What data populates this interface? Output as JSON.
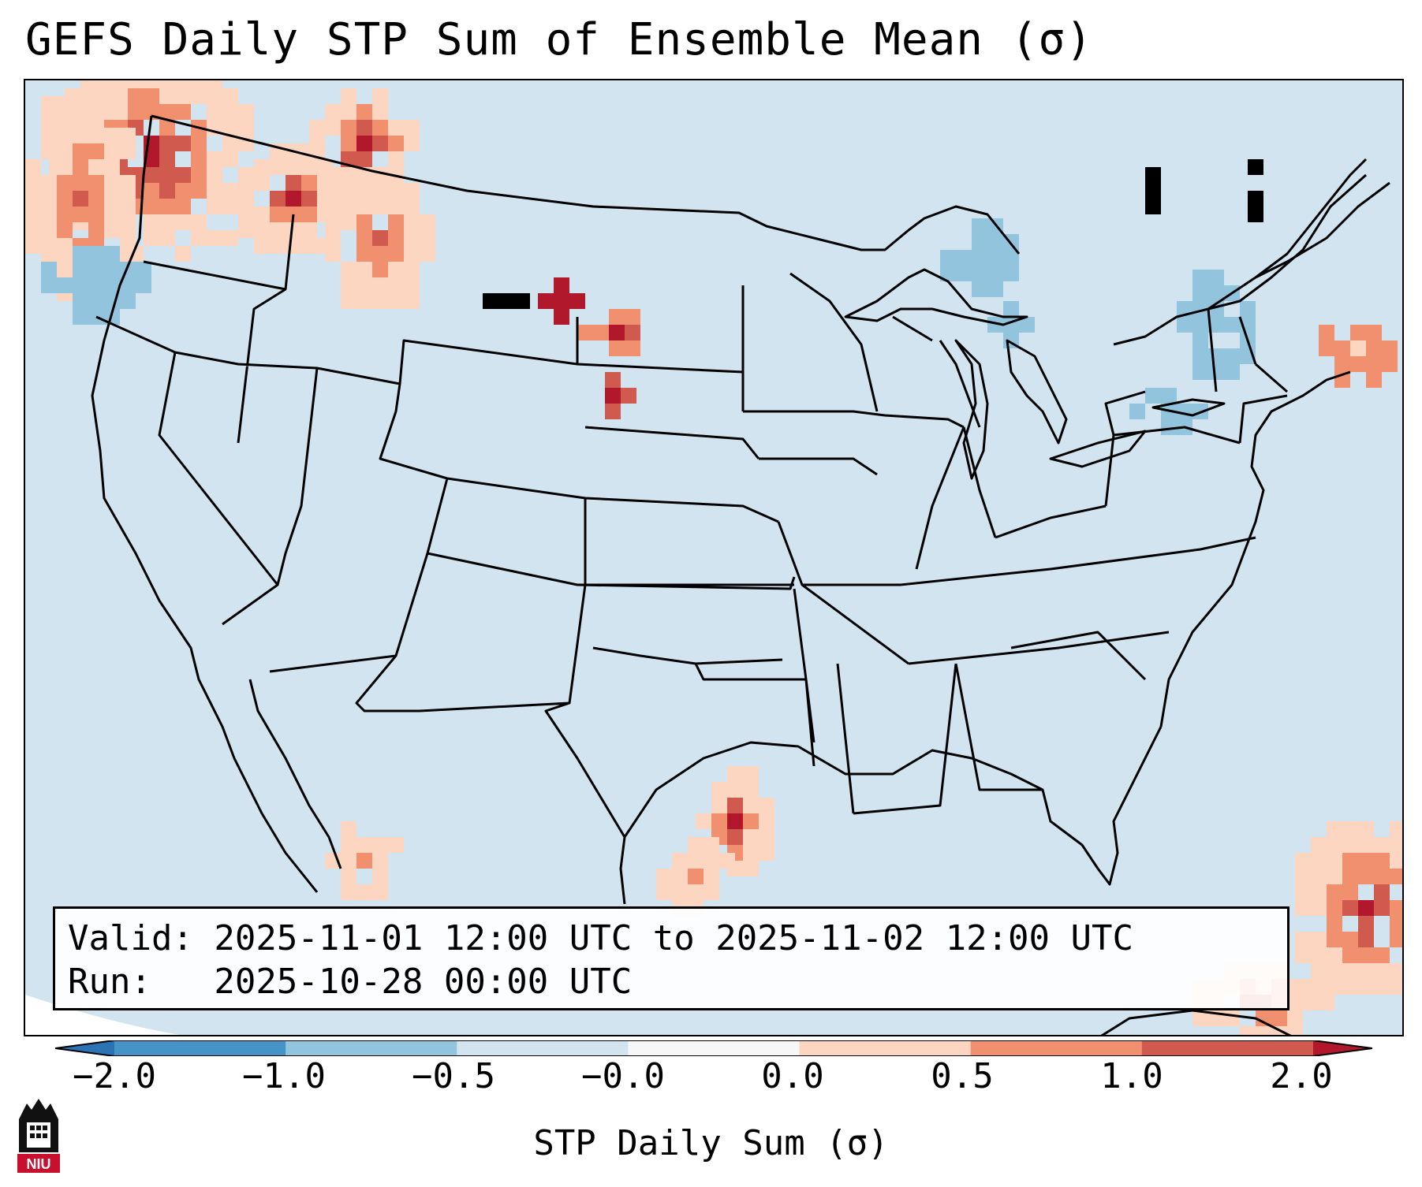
{
  "title": "GEFS Daily STP Sum of Ensemble Mean (σ)",
  "info": {
    "valid_line": "Valid: 2025-11-01 12:00 UTC to 2025-11-02 12:00 UTC",
    "run_line": "Run:   2025-10-28 00:00 UTC"
  },
  "colorbar": {
    "label": "STP Daily Sum (σ)",
    "ticks": [
      "−2.0",
      "−1.0",
      "−0.5",
      "−0.0",
      "0.0",
      "0.5",
      "1.0",
      "2.0"
    ],
    "colors": [
      "#2c73b4",
      "#4694c7",
      "#93c4de",
      "#d2e4ef",
      "#f7f7f7",
      "#fcd6c1",
      "#f0906e",
      "#d15a4e",
      "#b2182b"
    ],
    "extend": "both"
  },
  "logo": {
    "text": "NIU",
    "color": "#c8102e"
  },
  "map": {
    "background_color": "#d2e4ef",
    "projection": "Lambert Conformal",
    "region": "CONUS"
  },
  "chart_data": {
    "type": "heatmap",
    "title": "GEFS Daily STP Sum of Ensemble Mean (σ)",
    "colorbar_label": "STP Daily Sum (σ)",
    "levels": [
      -2.0,
      -1.0,
      -0.5,
      -0.0,
      0.0,
      0.5,
      1.0,
      2.0
    ],
    "features": [
      {
        "region": "Pacific Northwest (WA/OR coast & Puget Sound)",
        "value_range": [
          1.0,
          2.0
        ]
      },
      {
        "region": "Northern Idaho / NW Montana",
        "value_range": [
          1.0,
          2.0
        ]
      },
      {
        "region": "SW South Dakota / NW Nebraska",
        "value_range": [
          1.0,
          2.0
        ]
      },
      {
        "region": "South Texas coast",
        "value_range": [
          0.5,
          2.0
        ]
      },
      {
        "region": "Northeast Mexico",
        "value_range": [
          0.0,
          1.0
        ]
      },
      {
        "region": "Bahamas / Caribbean",
        "value_range": [
          1.0,
          2.0
        ]
      },
      {
        "region": "Great Lakes / Northern New York",
        "value_range": [
          -1.0,
          -0.5
        ]
      },
      {
        "region": "Offshore Oregon",
        "value_range": [
          -1.0,
          -0.5
        ]
      }
    ]
  }
}
